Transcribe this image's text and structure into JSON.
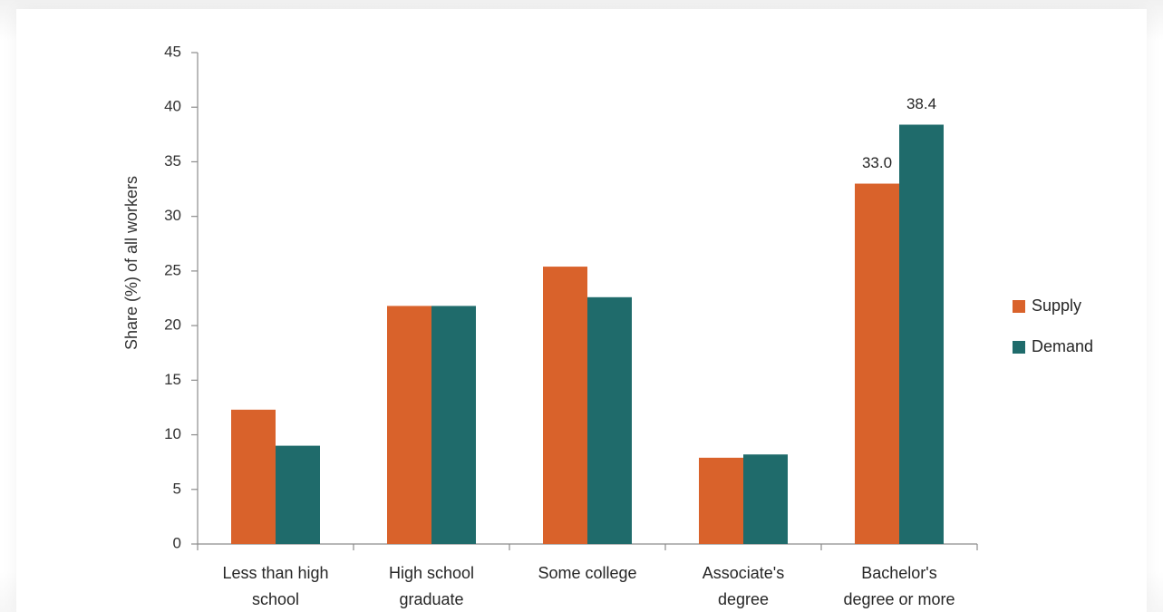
{
  "chart_data": {
    "type": "bar",
    "title": "",
    "xlabel": "",
    "ylabel": "Share (%) of all workers",
    "ylim": [
      0,
      45
    ],
    "yticks": [
      0,
      5,
      10,
      15,
      20,
      25,
      30,
      35,
      40,
      45
    ],
    "grid": false,
    "legend_position": "right",
    "categories": [
      [
        "Less than high",
        "school"
      ],
      [
        "High school",
        "graduate"
      ],
      [
        "Some college"
      ],
      [
        "Associate's",
        "degree"
      ],
      [
        "Bachelor's",
        "degree or more"
      ]
    ],
    "series": [
      {
        "name": "Supply",
        "color": "#D9622B",
        "values": [
          12.3,
          21.8,
          25.4,
          7.9,
          33.0
        ]
      },
      {
        "name": "Demand",
        "color": "#1F6B6B",
        "values": [
          9.0,
          21.8,
          22.6,
          8.2,
          38.4
        ]
      }
    ],
    "data_labels": [
      {
        "series": 0,
        "category": 4,
        "text": "33.0"
      },
      {
        "series": 1,
        "category": 4,
        "text": "38.4"
      }
    ]
  }
}
